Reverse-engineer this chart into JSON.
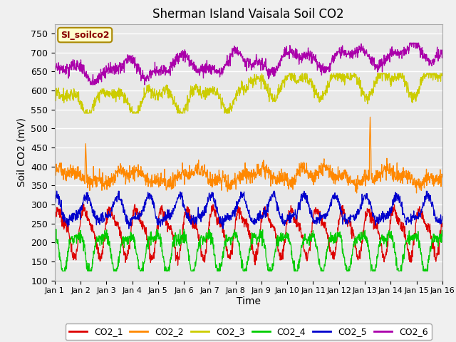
{
  "title": "Sherman Island Vaisala Soil CO2",
  "xlabel": "Time",
  "ylabel": "Soil CO2 (mV)",
  "annotation": "SI_soilco2",
  "ylim": [
    100,
    775
  ],
  "yticks": [
    100,
    150,
    200,
    250,
    300,
    350,
    400,
    450,
    500,
    550,
    600,
    650,
    700,
    750
  ],
  "xlim_days": 15,
  "xtick_labels": [
    "Jan 1",
    "Jan 2",
    "Jan 3",
    "Jan 4",
    "Jan 5",
    "Jan 6",
    "Jan 7",
    "Jan 8",
    "Jan 9",
    "Jan 10",
    "Jan 11",
    "Jan 12",
    "Jan 13",
    "Jan 14",
    "Jan 15",
    "Jan 16"
  ],
  "n_points": 1440,
  "background_color": "#e8e8e8",
  "grid_color": "#ffffff",
  "legend_colors": [
    "#dd0000",
    "#ff8800",
    "#cccc00",
    "#00cc00",
    "#0000cc",
    "#aa00aa"
  ],
  "legend_labels": [
    "CO2_1",
    "CO2_2",
    "CO2_3",
    "CO2_4",
    "CO2_5",
    "CO2_6"
  ]
}
